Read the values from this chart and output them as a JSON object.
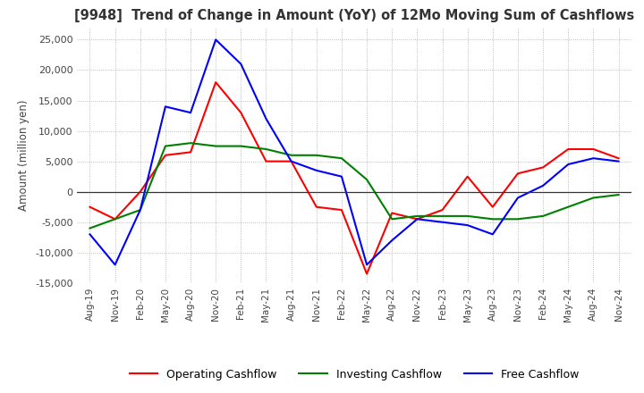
{
  "title": "[9948]  Trend of Change in Amount (YoY) of 12Mo Moving Sum of Cashflows",
  "ylabel": "Amount (million yen)",
  "ylim": [
    -15000,
    27000
  ],
  "yticks": [
    -15000,
    -10000,
    -5000,
    0,
    5000,
    10000,
    15000,
    20000,
    25000
  ],
  "background_color": "#ffffff",
  "grid_color": "#aaaaaa",
  "x_labels": [
    "Aug-19",
    "Nov-19",
    "Feb-20",
    "May-20",
    "Aug-20",
    "Nov-20",
    "Feb-21",
    "May-21",
    "Aug-21",
    "Nov-21",
    "Feb-22",
    "May-22",
    "Aug-22",
    "Nov-22",
    "Feb-23",
    "May-23",
    "Aug-23",
    "Nov-23",
    "Feb-24",
    "May-24",
    "Aug-24",
    "Nov-24"
  ],
  "operating_cashflow": [
    -2500,
    -4500,
    0,
    6000,
    6500,
    18000,
    13000,
    5000,
    5000,
    -2500,
    -3000,
    -13500,
    -3500,
    -4500,
    -3000,
    2500,
    -2500,
    3000,
    4000,
    7000,
    7000,
    5500
  ],
  "investing_cashflow": [
    -6000,
    -4500,
    -3000,
    7500,
    8000,
    7500,
    7500,
    7000,
    6000,
    6000,
    5500,
    2000,
    -4500,
    -4000,
    -4000,
    -4000,
    -4500,
    -4500,
    -4000,
    -2500,
    -1000,
    -500
  ],
  "free_cashflow": [
    -7000,
    -12000,
    -3000,
    14000,
    13000,
    25000,
    21000,
    12000,
    5000,
    3500,
    2500,
    -12000,
    -8000,
    -4500,
    -5000,
    -5500,
    -7000,
    -1000,
    1000,
    4500,
    5500,
    5000
  ],
  "op_color": "#ff0000",
  "inv_color": "#008000",
  "free_color": "#0000ff",
  "line_width": 1.5
}
